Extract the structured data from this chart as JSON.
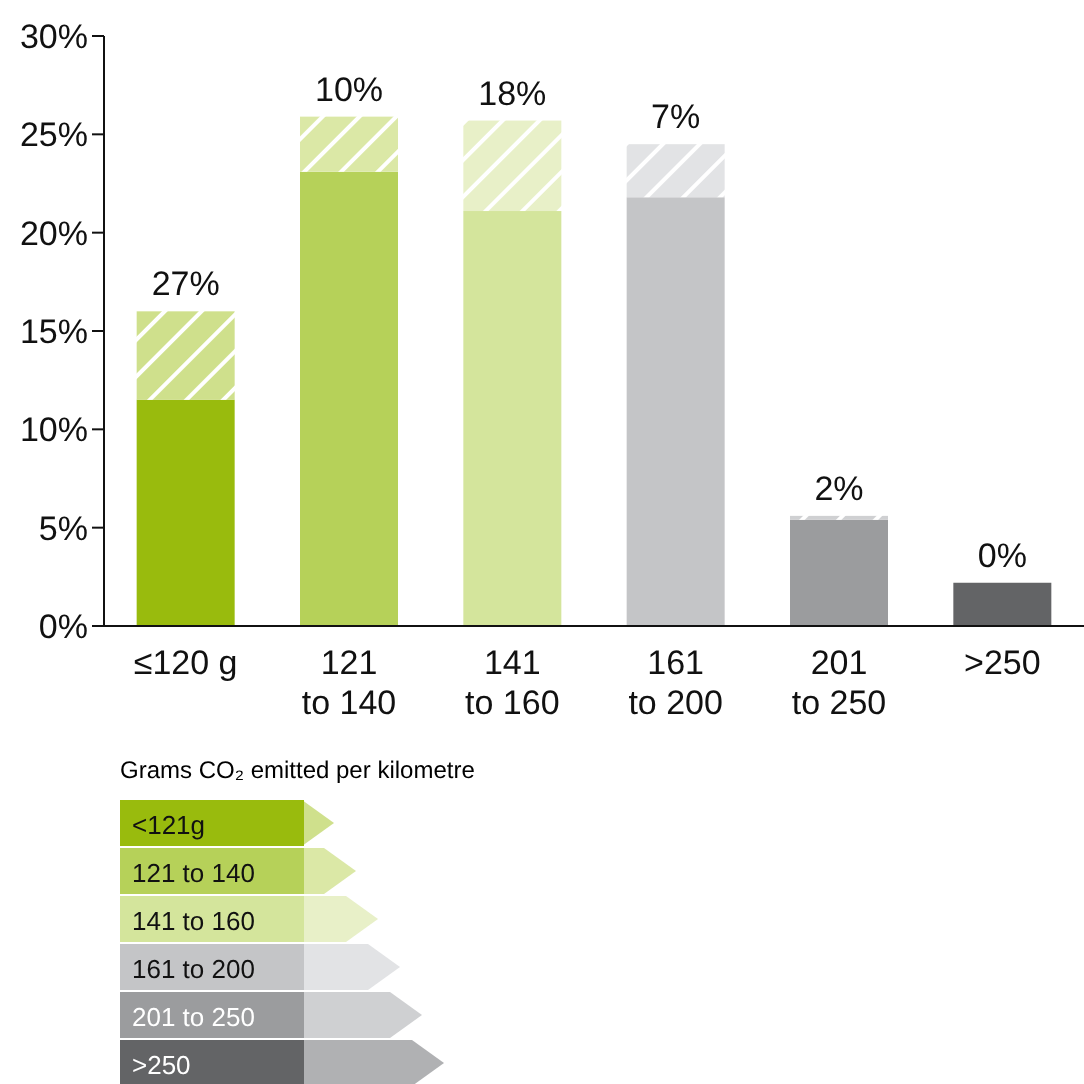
{
  "chart_data": {
    "type": "bar",
    "stacked": true,
    "categories": [
      "≤120 g",
      "121 to 140",
      "141 to 160",
      "161 to 200",
      "201 to 250",
      ">250"
    ],
    "series": [
      {
        "colors": [
          "#99bb0d",
          "#b6d159",
          "#d4e59c",
          "#c4c5c7",
          "#9b9c9e",
          "#636466"
        ],
        "values": [
          11.5,
          23.1,
          21.1,
          21.8,
          5.4,
          2.2
        ]
      },
      {
        "colors": [
          "#cfe08c",
          "#dbe8a6",
          "#e8f0c8",
          "#e2e3e5",
          "#cfd0d2",
          "#b0b1b3"
        ],
        "values": [
          4.5,
          2.8,
          4.6,
          2.7,
          0.2,
          0
        ]
      }
    ],
    "ylim": [
      0,
      30
    ],
    "yticks": [
      {
        "value": 0,
        "label": "0%"
      },
      {
        "value": 5,
        "label": "5%"
      },
      {
        "value": 10,
        "label": "10%"
      },
      {
        "value": 15,
        "label": "15%"
      },
      {
        "value": 20,
        "label": "20%"
      },
      {
        "value": 25,
        "label": "25%"
      },
      {
        "value": 30,
        "label": "30%"
      }
    ],
    "grid": false,
    "legend": false,
    "legend_title": "Grams CO₂ emitted per kilometre",
    "annotations": [
      "27%",
      "10%",
      "18%",
      "7%",
      "2%",
      "0%",
      "<121g",
      "121 to 140",
      "141 to 160",
      "161 to 200",
      "201 to 250",
      ">250"
    ]
  }
}
